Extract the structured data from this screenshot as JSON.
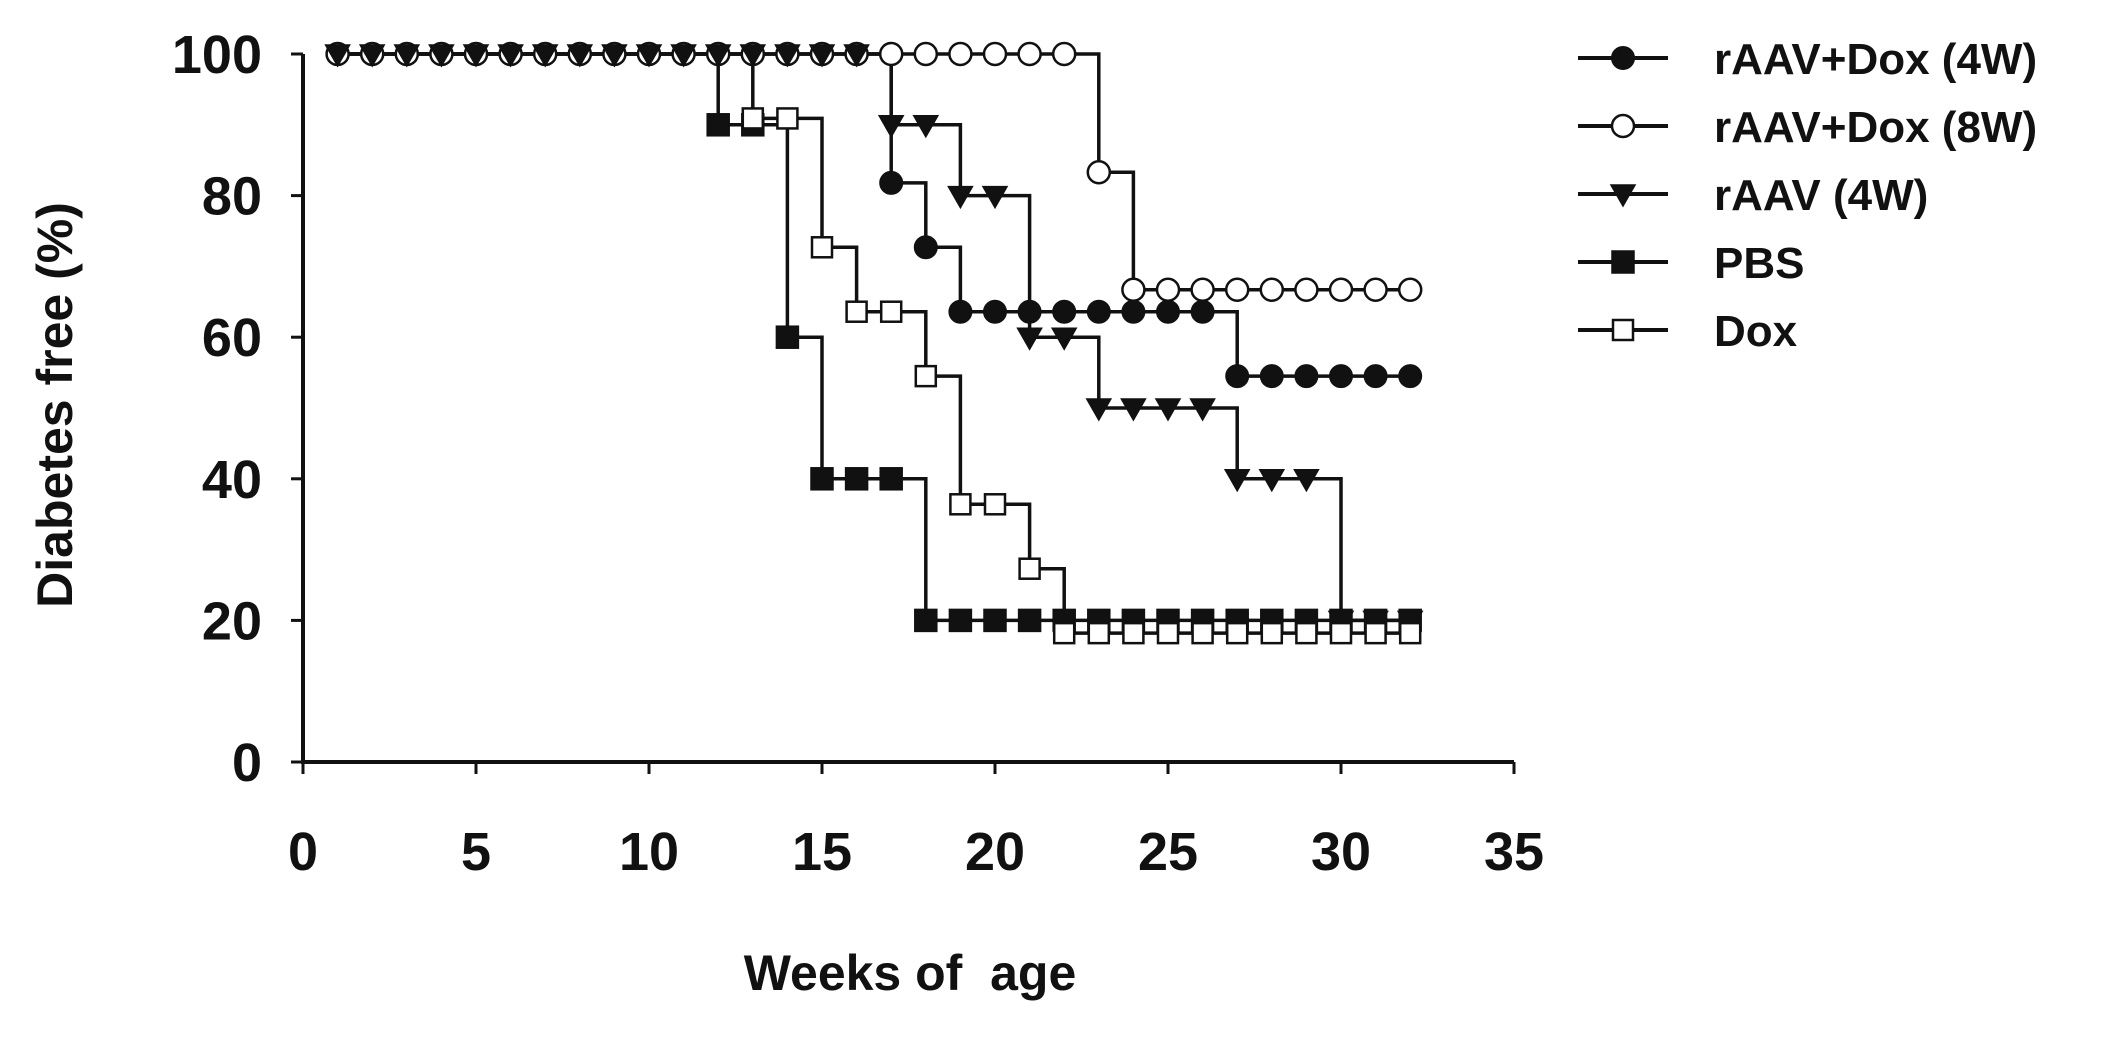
{
  "chart_data": {
    "type": "line",
    "title": "",
    "xlabel": "Weeks of  age",
    "ylabel": "Diabetes free (%)",
    "xlim": [
      0,
      35
    ],
    "ylim": [
      0,
      100
    ],
    "xticks": [
      0,
      5,
      10,
      15,
      20,
      25,
      30,
      35
    ],
    "yticks": [
      0,
      20,
      40,
      60,
      80,
      100
    ],
    "grid": false,
    "legend_position": "right",
    "step": true,
    "series": [
      {
        "name": "rAAV+Dox (4W)",
        "marker": "circle-filled",
        "x": [
          1,
          2,
          3,
          4,
          5,
          6,
          7,
          8,
          9,
          10,
          11,
          12,
          13,
          14,
          15,
          16,
          17,
          18,
          19,
          20,
          21,
          22,
          23,
          24,
          25,
          26,
          27,
          28,
          29,
          30,
          31,
          32
        ],
        "y": [
          100,
          100,
          100,
          100,
          100,
          100,
          100,
          100,
          100,
          100,
          100,
          100,
          100,
          100,
          100,
          100,
          81.8,
          72.7,
          63.6,
          63.6,
          63.6,
          63.6,
          63.6,
          63.6,
          63.6,
          63.6,
          54.5,
          54.5,
          54.5,
          54.5,
          54.5,
          54.5
        ]
      },
      {
        "name": "rAAV+Dox (8W)",
        "marker": "circle-open",
        "x": [
          1,
          2,
          3,
          4,
          5,
          6,
          7,
          8,
          9,
          10,
          11,
          12,
          13,
          14,
          15,
          16,
          17,
          18,
          19,
          20,
          21,
          22,
          23,
          24,
          25,
          26,
          27,
          28,
          29,
          30,
          31,
          32
        ],
        "y": [
          100,
          100,
          100,
          100,
          100,
          100,
          100,
          100,
          100,
          100,
          100,
          100,
          100,
          100,
          100,
          100,
          100,
          100,
          100,
          100,
          100,
          100,
          83.3,
          66.7,
          66.7,
          66.7,
          66.7,
          66.7,
          66.7,
          66.7,
          66.7,
          66.7
        ]
      },
      {
        "name": "rAAV (4W)",
        "marker": "triangle-down-filled",
        "x": [
          1,
          2,
          3,
          4,
          5,
          6,
          7,
          8,
          9,
          10,
          11,
          12,
          13,
          14,
          15,
          16,
          17,
          18,
          19,
          20,
          21,
          22,
          23,
          24,
          25,
          26,
          27,
          28,
          29,
          30,
          31,
          32
        ],
        "y": [
          100,
          100,
          100,
          100,
          100,
          100,
          100,
          100,
          100,
          100,
          100,
          100,
          100,
          100,
          100,
          100,
          90,
          90,
          80,
          80,
          60,
          60,
          50,
          50,
          50,
          50,
          40,
          40,
          40,
          20,
          20,
          20
        ]
      },
      {
        "name": "PBS",
        "marker": "square-filled",
        "x": [
          12,
          13,
          14,
          15,
          16,
          17,
          18,
          19,
          20,
          21,
          22,
          23,
          24,
          25,
          26,
          27,
          28,
          29,
          30,
          31,
          32
        ],
        "y": [
          90,
          90,
          60,
          40,
          40,
          40,
          20,
          20,
          20,
          20,
          20,
          20,
          20,
          20,
          20,
          20,
          20,
          20,
          20,
          20,
          20
        ]
      },
      {
        "name": "Dox",
        "marker": "square-open",
        "x": [
          13,
          14,
          15,
          16,
          17,
          18,
          19,
          20,
          21,
          22,
          23,
          24,
          25,
          26,
          27,
          28,
          29,
          30,
          31,
          32
        ],
        "y": [
          90.9,
          90.9,
          72.7,
          63.6,
          63.6,
          54.5,
          36.4,
          36.4,
          27.3,
          18.2,
          18.2,
          18.2,
          18.2,
          18.2,
          18.2,
          18.2,
          18.2,
          18.2,
          18.2,
          18.2
        ]
      }
    ]
  }
}
